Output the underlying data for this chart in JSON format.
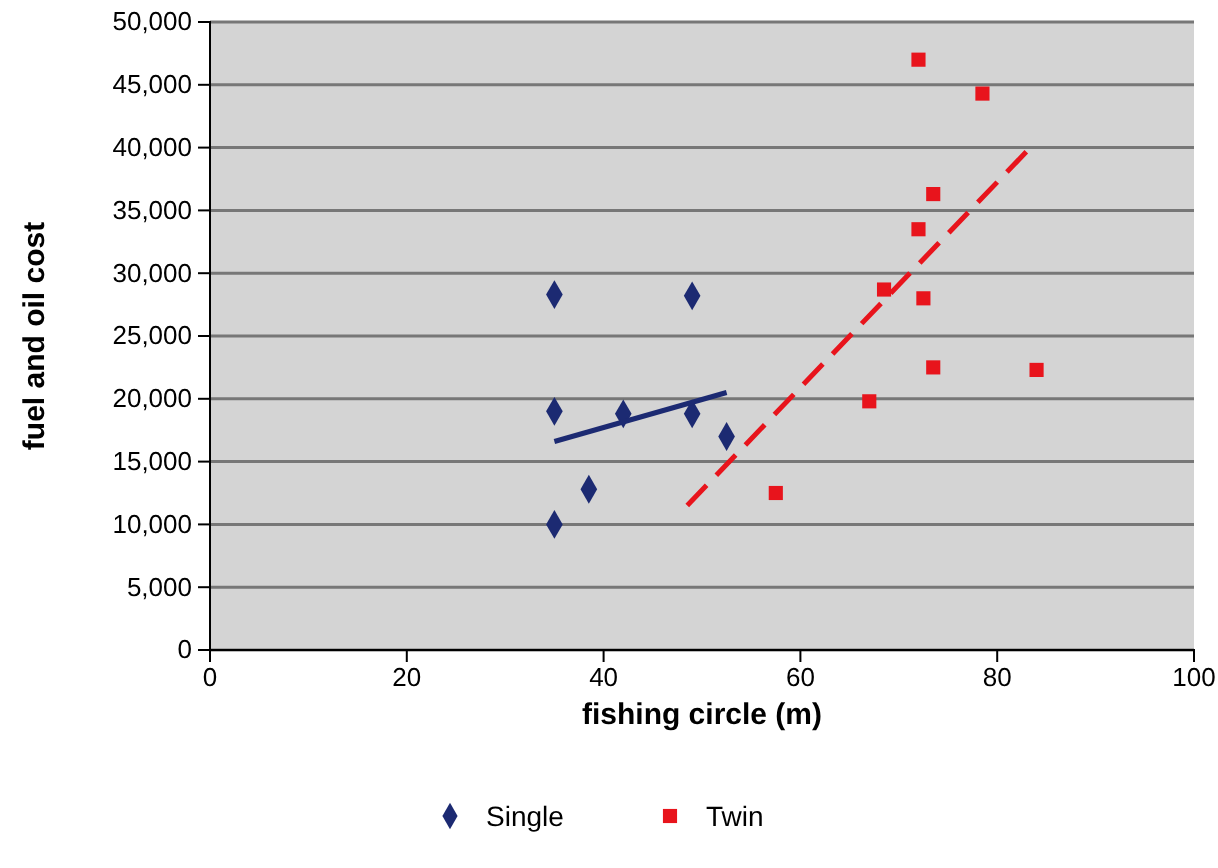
{
  "chart_data": {
    "type": "scatter",
    "xlabel": "fishing circle (m)",
    "ylabel": "fuel and oil cost",
    "xlim": [
      0,
      100
    ],
    "xticks": [
      0,
      20,
      40,
      60,
      80,
      100
    ],
    "ylim": [
      0,
      50000
    ],
    "yticks": [
      {
        "value": 0,
        "label": "0"
      },
      {
        "value": 5000,
        "label": "5,000"
      },
      {
        "value": 10000,
        "label": "10,000"
      },
      {
        "value": 15000,
        "label": "15,000"
      },
      {
        "value": 20000,
        "label": "20,000"
      },
      {
        "value": 25000,
        "label": "25,000"
      },
      {
        "value": 30000,
        "label": "30,000"
      },
      {
        "value": 35000,
        "label": "35,000"
      },
      {
        "value": 40000,
        "label": "40,000"
      },
      {
        "value": 45000,
        "label": "45,000"
      },
      {
        "value": 50000,
        "label": "50,000"
      }
    ],
    "grid": "y",
    "legend": "bottom",
    "series": [
      {
        "name": "Single",
        "color": "#1c2a72",
        "marker": "diamond",
        "x": [
          35,
          35,
          35,
          38.5,
          42,
          49,
          49,
          52.5
        ],
        "values": [
          28300,
          19000,
          10000,
          12800,
          18800,
          28200,
          18800,
          17000
        ]
      },
      {
        "name": "Twin",
        "color": "#e8141c",
        "marker": "square",
        "x": [
          57.5,
          67,
          68.5,
          72,
          72,
          72.5,
          73.5,
          73.5,
          78.5,
          84
        ],
        "values": [
          12500,
          19800,
          28700,
          33500,
          47000,
          28000,
          36300,
          22500,
          44300,
          22300
        ]
      },
      {
        "type": "line",
        "color": "#1c2a72",
        "line_style": "solid",
        "x": [
          35,
          52.5
        ],
        "values": [
          16600,
          20500
        ]
      },
      {
        "type": "line",
        "color": "#e8141c",
        "line_style": "dashed",
        "x": [
          48.5,
          83
        ],
        "values": [
          11500,
          39700
        ]
      }
    ]
  }
}
